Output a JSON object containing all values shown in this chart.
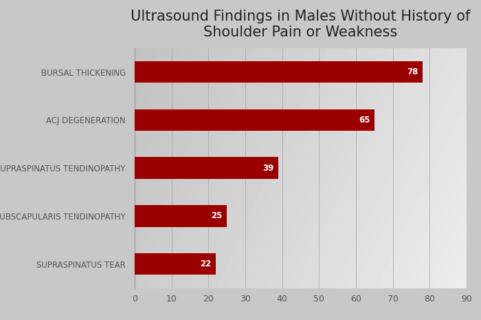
{
  "title": "Ultrasound Findings in Males Without History of\nShoulder Pain or Weakness",
  "categories": [
    "SUPRASPINATUS TEAR",
    "SUBSCAPULARIS TENDINOPATHY",
    "SUPRASPINATUS TENDINOPATHY",
    "ACJ DEGENERATION",
    "BURSAL THICKENING"
  ],
  "values": [
    22,
    25,
    39,
    65,
    78
  ],
  "bar_color": "#9b0000",
  "text_color_title": "#222222",
  "text_color_labels": "#555555",
  "text_color_values": "#ffffff",
  "xlim": [
    0,
    90
  ],
  "xticks": [
    0,
    10,
    20,
    30,
    40,
    50,
    60,
    70,
    80,
    90
  ],
  "title_fontsize": 15,
  "label_fontsize": 8.5,
  "value_fontsize": 8.5,
  "tick_fontsize": 9,
  "bar_height": 0.45,
  "fig_bg": "#c8c8c8"
}
